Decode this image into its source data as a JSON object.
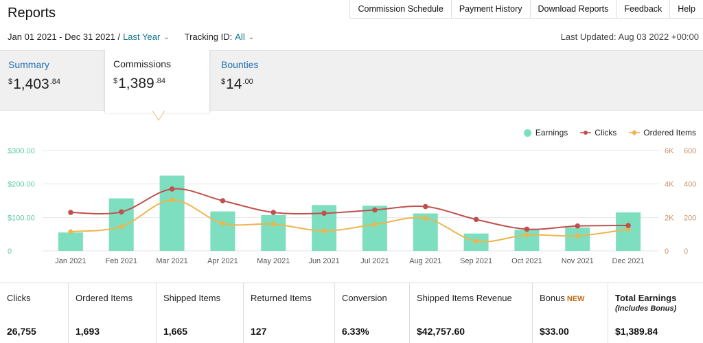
{
  "page": {
    "title": "Reports"
  },
  "top_nav": [
    "Commission Schedule",
    "Payment History",
    "Download Reports",
    "Feedback",
    "Help"
  ],
  "filters": {
    "date_range": "Jan 01 2021 - Dec 31 2021 /",
    "date_preset": "Last Year",
    "tracking_label": "Tracking ID:",
    "tracking_value": "All",
    "last_updated": "Last Updated: Aug 03 2022 +00:00"
  },
  "tabs": [
    {
      "label": "Summary",
      "currency": "$",
      "whole": "1,403",
      "cents": ".84"
    },
    {
      "label": "Commissions",
      "currency": "$",
      "whole": "1,389",
      "cents": ".84"
    },
    {
      "label": "Bounties",
      "currency": "$",
      "whole": "14",
      "cents": ".00"
    }
  ],
  "colors": {
    "earnings": "#7ddfbf",
    "clicks": "#c0504d",
    "ordered": "#f0b44c",
    "left_axis": "#5cc9a5",
    "right_axis": "#c8926a"
  },
  "chart_data": {
    "type": "bar",
    "categories": [
      "Jan 2021",
      "Feb 2021",
      "Mar 2021",
      "Apr 2021",
      "May 2021",
      "Jun 2021",
      "Jul 2021",
      "Aug 2021",
      "Sep 2021",
      "Oct 2021",
      "Nov 2021",
      "Dec 2021"
    ],
    "series": [
      {
        "name": "Earnings",
        "type": "bar",
        "axis": "left",
        "values": [
          55,
          157,
          225,
          118,
          107,
          137,
          135,
          112,
          52,
          63,
          70,
          115
        ]
      },
      {
        "name": "Clicks",
        "type": "line",
        "axis": "right_outer",
        "values": [
          2300,
          2330,
          3700,
          3000,
          2300,
          2250,
          2450,
          2650,
          1880,
          1300,
          1490,
          1520
        ]
      },
      {
        "name": "Ordered Items",
        "type": "line",
        "axis": "right_inner",
        "values": [
          115,
          145,
          305,
          165,
          160,
          120,
          158,
          195,
          58,
          95,
          90,
          130
        ]
      }
    ],
    "left_axis": {
      "ticks": [
        "$300.00",
        "$200.00",
        "$100.00",
        "0"
      ],
      "range": [
        0,
        300
      ]
    },
    "right_outer_axis": {
      "ticks": [
        "6K",
        "4K",
        "2K",
        "0"
      ],
      "range": [
        0,
        6000
      ]
    },
    "right_inner_axis": {
      "ticks": [
        "600",
        "400",
        "200",
        "0"
      ],
      "range": [
        0,
        600
      ]
    },
    "legend": "top-right",
    "grid": true
  },
  "stats": [
    {
      "label": "Clicks",
      "value": "26,755"
    },
    {
      "label": "Ordered Items",
      "value": "1,693"
    },
    {
      "label": "Shipped Items",
      "value": "1,665"
    },
    {
      "label": "Returned Items",
      "value": "127"
    },
    {
      "label": "Conversion",
      "value": "6.33%"
    },
    {
      "label": "Shipped Items Revenue",
      "value": "$42,757.60"
    },
    {
      "label": "Bonus",
      "badge": "NEW",
      "value": "$33.00"
    },
    {
      "label": "Total Earnings",
      "sub": "(Includes Bonus)",
      "value": "$1,389.84"
    }
  ]
}
